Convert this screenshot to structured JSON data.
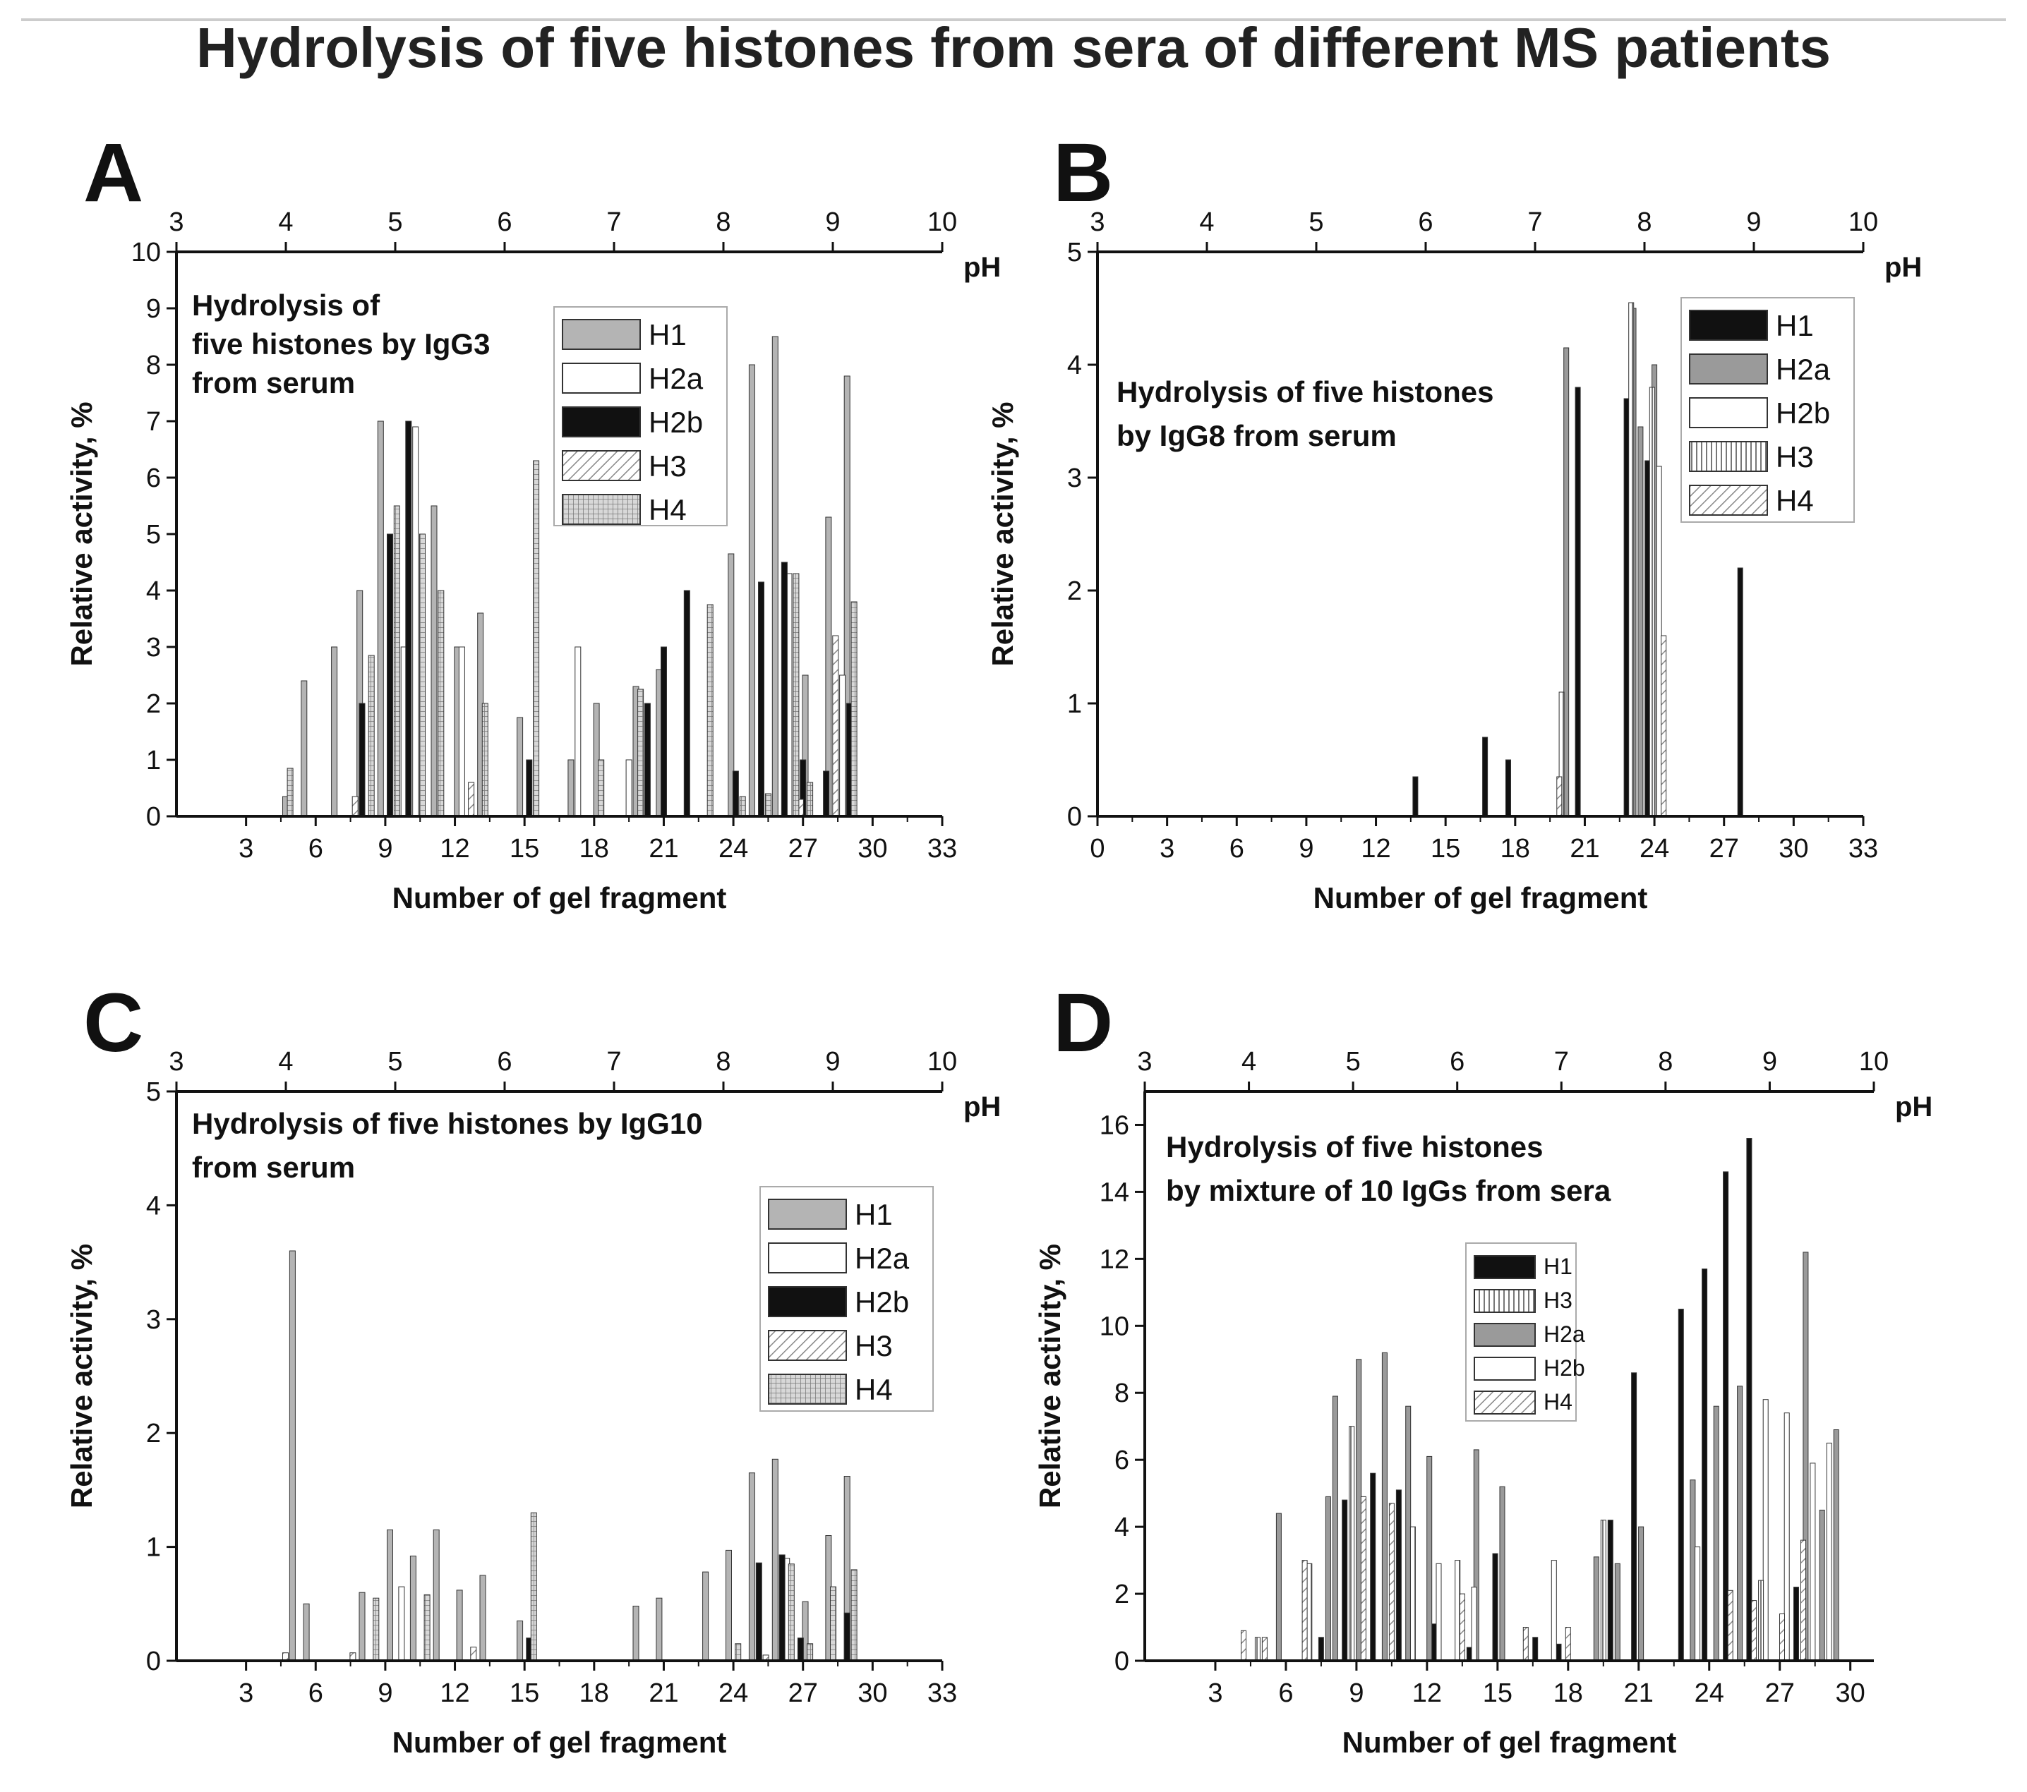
{
  "figure_title": "Hydrolysis of five histones from sera of different MS patients",
  "styles": {
    "H1_A": {
      "fill": "#b4b4b4"
    },
    "H2a_A": {
      "fill": "#ffffff"
    },
    "H2b_A": {
      "fill": "#111111"
    },
    "H3_A": {
      "fill": "url(#hatch)"
    },
    "H4_A": {
      "fill": "url(#grid)"
    },
    "H1_dark": {
      "fill": "#111111"
    },
    "H2a_grey": {
      "fill": "#9a9a9a"
    },
    "H2b_white": {
      "fill": "#ffffff"
    },
    "H3_vert": {
      "fill": "url(#vlines)"
    },
    "H4_hatch": {
      "fill": "url(#hatch)"
    }
  },
  "chart_data": [
    {
      "panel": "A",
      "type": "bar",
      "annotation": [
        "Hydrolysis of",
        "five histones by IgG3",
        "from serum"
      ],
      "xlabel": "Number of gel fragment",
      "ylabel": "Relative activity, %",
      "xlim": [
        0,
        33
      ],
      "ylim": [
        0,
        10
      ],
      "xticks": [
        3,
        6,
        9,
        12,
        15,
        18,
        21,
        24,
        27,
        30,
        33
      ],
      "yticks": [
        0,
        1,
        2,
        3,
        4,
        5,
        6,
        7,
        8,
        9,
        10
      ],
      "ph_axis": {
        "label": "pH",
        "range": [
          3,
          10
        ],
        "ticks": [
          3,
          4,
          5,
          6,
          7,
          8,
          9,
          10
        ]
      },
      "legend": [
        {
          "label": "H1",
          "style": "H1_A"
        },
        {
          "label": "H2a",
          "style": "H2a_A"
        },
        {
          "label": "H2b",
          "style": "H2b_A"
        },
        {
          "label": "H3",
          "style": "H3_A"
        },
        {
          "label": "H4",
          "style": "H4_A"
        }
      ],
      "series": [
        {
          "name": "H1",
          "style": "H1_A",
          "points": [
            [
              4.7,
              0.35
            ],
            [
              5.5,
              2.4
            ],
            [
              6.8,
              3.0
            ],
            [
              7.9,
              4.0
            ],
            [
              8.8,
              7.0
            ],
            [
              11.1,
              5.5
            ],
            [
              12.1,
              3.0
            ],
            [
              13.1,
              3.6
            ],
            [
              14.8,
              1.75
            ],
            [
              17,
              1.0
            ],
            [
              18.1,
              2.0
            ],
            [
              19.8,
              2.3
            ],
            [
              20.8,
              2.6
            ],
            [
              23.9,
              4.65
            ],
            [
              24.8,
              8.0
            ],
            [
              25.8,
              8.5
            ],
            [
              27.1,
              2.5
            ],
            [
              28.1,
              5.3
            ],
            [
              28.9,
              7.8
            ]
          ]
        },
        {
          "name": "H2a",
          "style": "H2a_A",
          "points": [
            [
              9.8,
              3.0
            ],
            [
              10.3,
              6.9
            ],
            [
              12.3,
              3.0
            ],
            [
              17.3,
              3.0
            ],
            [
              19.5,
              1.0
            ],
            [
              26.4,
              4.3
            ],
            [
              28.7,
              2.5
            ]
          ]
        },
        {
          "name": "H2b",
          "style": "H2b_A",
          "points": [
            [
              8.0,
              2.0
            ],
            [
              9.2,
              5.0
            ],
            [
              10.0,
              7.0
            ],
            [
              15.2,
              1.0
            ],
            [
              20.3,
              2.0
            ],
            [
              21.0,
              3.0
            ],
            [
              22.0,
              4.0
            ],
            [
              24.1,
              0.8
            ],
            [
              25.2,
              4.15
            ],
            [
              26.2,
              4.5
            ],
            [
              27.0,
              1.0
            ],
            [
              28.0,
              0.8
            ],
            [
              29.0,
              2.0
            ]
          ]
        },
        {
          "name": "H3",
          "style": "H3_A",
          "points": [
            [
              7.7,
              0.35
            ],
            [
              10.6,
              4.5
            ],
            [
              12.7,
              0.6
            ],
            [
              26.9,
              0.3
            ],
            [
              28.4,
              3.2
            ]
          ]
        },
        {
          "name": "H4",
          "style": "H4_A",
          "points": [
            [
              4.9,
              0.85
            ],
            [
              8.4,
              2.85
            ],
            [
              9.5,
              5.5
            ],
            [
              10.6,
              5.0
            ],
            [
              11.4,
              4.0
            ],
            [
              13.3,
              2.0
            ],
            [
              15.5,
              6.3
            ],
            [
              18.3,
              1.0
            ],
            [
              20.0,
              2.25
            ],
            [
              23.0,
              3.75
            ],
            [
              24.4,
              0.35
            ],
            [
              25.5,
              0.4
            ],
            [
              26.7,
              4.3
            ],
            [
              27.3,
              0.6
            ],
            [
              29.2,
              3.8
            ]
          ]
        }
      ]
    },
    {
      "panel": "B",
      "type": "bar",
      "annotation": [
        "Hydrolysis of five histones",
        "by IgG8 from serum"
      ],
      "xlabel": "Number of gel fragment",
      "ylabel": "Relative activity, %",
      "xlim": [
        0,
        33
      ],
      "ylim": [
        0,
        5
      ],
      "xticks": [
        0,
        3,
        6,
        9,
        12,
        15,
        18,
        21,
        24,
        27,
        30,
        33
      ],
      "yticks": [
        0,
        1,
        2,
        3,
        4,
        5
      ],
      "ph_axis": {
        "label": "pH",
        "range": [
          3,
          10
        ],
        "ticks": [
          3,
          4,
          5,
          6,
          7,
          8,
          9,
          10
        ]
      },
      "legend": [
        {
          "label": "H1",
          "style": "H1_dark"
        },
        {
          "label": "H2a",
          "style": "H2a_grey"
        },
        {
          "label": "H2b",
          "style": "H2b_white"
        },
        {
          "label": "H3",
          "style": "H3_vert"
        },
        {
          "label": "H4",
          "style": "H4_hatch"
        }
      ],
      "series": [
        {
          "name": "H1",
          "style": "H1_dark",
          "points": [
            [
              13.7,
              0.35
            ],
            [
              16.7,
              0.7
            ],
            [
              17.7,
              0.5
            ],
            [
              20.7,
              3.8
            ],
            [
              22.8,
              3.7
            ],
            [
              23.7,
              3.15
            ],
            [
              27.7,
              2.2
            ]
          ]
        },
        {
          "name": "H2a",
          "style": "H2a_grey",
          "points": [
            [
              20.2,
              4.15
            ],
            [
              23.1,
              4.5
            ],
            [
              23.4,
              3.45
            ],
            [
              24.0,
              4.0
            ]
          ]
        },
        {
          "name": "H2b",
          "style": "H2b_white",
          "points": [
            [
              24.2,
              3.1
            ]
          ]
        },
        {
          "name": "H3",
          "style": "H3_vert",
          "points": [
            [
              20.0,
              1.1
            ],
            [
              23.0,
              4.55
            ],
            [
              23.9,
              3.8
            ]
          ]
        },
        {
          "name": "H4",
          "style": "H4_hatch",
          "points": [
            [
              19.9,
              0.35
            ],
            [
              24.4,
              1.6
            ]
          ]
        }
      ]
    },
    {
      "panel": "C",
      "type": "bar",
      "annotation": [
        "Hydrolysis of five histones by IgG10",
        "from serum"
      ],
      "xlabel": "Number of gel fragment",
      "ylabel": "Relative activity, %",
      "xlim": [
        0,
        33
      ],
      "ylim": [
        0,
        5
      ],
      "xticks": [
        3,
        6,
        9,
        12,
        15,
        18,
        21,
        24,
        27,
        30,
        33
      ],
      "yticks": [
        0,
        1,
        2,
        3,
        4,
        5
      ],
      "ph_axis": {
        "label": "pH",
        "range": [
          3,
          10
        ],
        "ticks": [
          3,
          4,
          5,
          6,
          7,
          8,
          9,
          10
        ]
      },
      "legend": [
        {
          "label": "H1",
          "style": "H1_A"
        },
        {
          "label": "H2a",
          "style": "H2a_A"
        },
        {
          "label": "H2b",
          "style": "H2b_A"
        },
        {
          "label": "H3",
          "style": "H3_A"
        },
        {
          "label": "H4",
          "style": "H4_A"
        }
      ],
      "series": [
        {
          "name": "H1",
          "style": "H1_A",
          "points": [
            [
              5.0,
              3.6
            ],
            [
              5.6,
              0.5
            ],
            [
              8.0,
              0.6
            ],
            [
              9.2,
              1.15
            ],
            [
              10.2,
              0.92
            ],
            [
              11.2,
              1.15
            ],
            [
              12.2,
              0.62
            ],
            [
              13.2,
              0.75
            ],
            [
              14.8,
              0.35
            ],
            [
              19.8,
              0.48
            ],
            [
              20.8,
              0.55
            ],
            [
              22.8,
              0.78
            ],
            [
              23.8,
              0.97
            ],
            [
              24.8,
              1.65
            ],
            [
              25.8,
              1.77
            ],
            [
              27.1,
              0.52
            ],
            [
              28.1,
              1.1
            ],
            [
              28.9,
              1.62
            ]
          ]
        },
        {
          "name": "H2a",
          "style": "H2a_A",
          "points": [
            [
              9.7,
              0.65
            ],
            [
              26.3,
              0.9
            ]
          ]
        },
        {
          "name": "H2b",
          "style": "H2b_A",
          "points": [
            [
              15.2,
              0.2
            ],
            [
              25.1,
              0.86
            ],
            [
              26.1,
              0.93
            ],
            [
              26.9,
              0.2
            ],
            [
              28.9,
              0.42
            ]
          ]
        },
        {
          "name": "H3",
          "style": "H3_A",
          "points": [
            [
              4.7,
              0.07
            ],
            [
              7.6,
              0.07
            ],
            [
              12.8,
              0.12
            ],
            [
              25.4,
              0.05
            ]
          ]
        },
        {
          "name": "H4",
          "style": "H4_A",
          "points": [
            [
              8.6,
              0.55
            ],
            [
              10.8,
              0.58
            ],
            [
              15.4,
              1.3
            ],
            [
              24.2,
              0.15
            ],
            [
              26.5,
              0.85
            ],
            [
              27.3,
              0.15
            ],
            [
              28.3,
              0.65
            ],
            [
              29.2,
              0.8
            ]
          ]
        }
      ]
    },
    {
      "panel": "D",
      "type": "bar",
      "annotation": [
        "Hydrolysis of five histones",
        "by mixture of 10 IgGs  from sera"
      ],
      "xlabel": "Number of gel fragment",
      "ylabel": "Relative activity, %",
      "xlim": [
        0,
        31
      ],
      "ylim": [
        0,
        17
      ],
      "xticks": [
        3,
        6,
        9,
        12,
        15,
        18,
        21,
        24,
        27,
        30
      ],
      "yticks": [
        0,
        2,
        4,
        6,
        8,
        10,
        12,
        14,
        16
      ],
      "ph_axis": {
        "label": "pH",
        "range": [
          3,
          10
        ],
        "ticks": [
          3,
          4,
          5,
          6,
          7,
          8,
          9,
          10
        ]
      },
      "legend": [
        {
          "label": "H1",
          "style": "H1_dark"
        },
        {
          "label": "H3",
          "style": "H3_vert"
        },
        {
          "label": "H2a",
          "style": "H2a_grey"
        },
        {
          "label": "H2b",
          "style": "H2b_white"
        },
        {
          "label": "H4",
          "style": "H4_hatch"
        }
      ],
      "series": [
        {
          "name": "H1",
          "style": "H1_dark",
          "points": [
            [
              7.5,
              0.7
            ],
            [
              8.5,
              4.8
            ],
            [
              9.7,
              5.6
            ],
            [
              10.8,
              5.1
            ],
            [
              12.3,
              1.1
            ],
            [
              13.8,
              0.4
            ],
            [
              14.9,
              3.2
            ],
            [
              16.6,
              0.7
            ],
            [
              17.6,
              0.5
            ],
            [
              19.8,
              4.2
            ],
            [
              20.8,
              8.6
            ],
            [
              22.8,
              10.5
            ],
            [
              23.8,
              11.7
            ],
            [
              24.7,
              14.6
            ],
            [
              25.7,
              15.6
            ],
            [
              27.7,
              2.2
            ]
          ]
        },
        {
          "name": "H2a",
          "style": "H2a_grey",
          "points": [
            [
              5.7,
              4.4
            ],
            [
              7.8,
              4.9
            ],
            [
              8.1,
              7.9
            ],
            [
              9.1,
              9.0
            ],
            [
              10.2,
              9.2
            ],
            [
              11.2,
              7.6
            ],
            [
              12.1,
              6.1
            ],
            [
              14.1,
              6.3
            ],
            [
              15.2,
              5.2
            ],
            [
              19.2,
              3.1
            ],
            [
              20.1,
              2.9
            ],
            [
              21.1,
              4.0
            ],
            [
              23.3,
              5.4
            ],
            [
              24.3,
              7.6
            ],
            [
              25.3,
              8.2
            ],
            [
              28.1,
              12.2
            ],
            [
              28.8,
              4.5
            ],
            [
              29.4,
              6.9
            ]
          ]
        },
        {
          "name": "H2b",
          "style": "H2b_white",
          "points": [
            [
              12.5,
              2.9
            ],
            [
              14.0,
              2.2
            ],
            [
              17.4,
              3.0
            ],
            [
              23.5,
              3.4
            ],
            [
              26.4,
              7.8
            ],
            [
              27.3,
              7.4
            ],
            [
              28.4,
              5.9
            ],
            [
              29.1,
              6.5
            ]
          ]
        },
        {
          "name": "H3",
          "style": "H3_vert",
          "points": [
            [
              4.8,
              0.7
            ],
            [
              7.0,
              2.9
            ],
            [
              8.8,
              7.0
            ],
            [
              11.4,
              4.0
            ],
            [
              13.3,
              3.0
            ],
            [
              19.5,
              4.2
            ],
            [
              26.2,
              2.4
            ]
          ]
        },
        {
          "name": "H4",
          "style": "H4_hatch",
          "points": [
            [
              4.2,
              0.9
            ],
            [
              5.1,
              0.7
            ],
            [
              6.8,
              3.0
            ],
            [
              9.3,
              4.9
            ],
            [
              10.5,
              4.7
            ],
            [
              13.5,
              2.0
            ],
            [
              16.2,
              1.0
            ],
            [
              18.0,
              1.0
            ],
            [
              24.9,
              2.1
            ],
            [
              25.9,
              1.8
            ],
            [
              27.1,
              1.4
            ],
            [
              28.0,
              3.6
            ]
          ]
        }
      ]
    }
  ]
}
